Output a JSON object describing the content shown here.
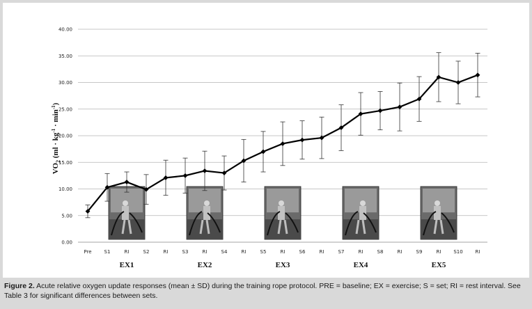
{
  "chart_data": {
    "type": "line",
    "title": "",
    "xlabel": "",
    "ylabel": {
      "main": "VO",
      "sub": "2",
      "rest_a": " (ml · kg",
      "sup_a": "-1",
      "rest_b": " · min",
      "sup_b": "-1",
      "rest_c": ")"
    },
    "ylim": [
      0,
      40
    ],
    "yticks": [
      "0.00",
      "5.00",
      "10.00",
      "15.00",
      "20.00",
      "25.00",
      "30.00",
      "35.00",
      "40.00"
    ],
    "grid": "horizontal",
    "categories": [
      "Pre",
      "S1",
      "RI",
      "S2",
      "RI",
      "S3",
      "RI",
      "S4",
      "RI",
      "S5",
      "RI",
      "S6",
      "RI",
      "S7",
      "RI",
      "S8",
      "RI",
      "S9",
      "RI",
      "S10",
      "RI"
    ],
    "series": [
      {
        "name": "",
        "values": [
          5.8,
          10.3,
          11.3,
          9.9,
          12.1,
          12.5,
          13.4,
          13.0,
          15.3,
          17.0,
          18.5,
          19.2,
          19.6,
          21.5,
          24.1,
          24.7,
          25.4,
          26.9,
          31.0,
          30.0,
          31.4
        ],
        "error": [
          1.2,
          2.6,
          1.9,
          2.8,
          3.3,
          3.3,
          3.7,
          3.2,
          4.0,
          3.8,
          4.1,
          3.6,
          3.9,
          4.3,
          4.0,
          3.6,
          4.5,
          4.2,
          4.6,
          4.0,
          4.1
        ]
      }
    ],
    "exercise_labels": [
      {
        "text": "EX1",
        "center_index": 2
      },
      {
        "text": "EX2",
        "center_index": 6
      },
      {
        "text": "EX3",
        "center_index": 10
      },
      {
        "text": "EX4",
        "center_index": 14
      },
      {
        "text": "EX5",
        "center_index": 18
      }
    ]
  },
  "caption": {
    "lead": "Figure 2.",
    "text": "Acute relative oxygen update responses (mean ± SD) during the training rope protocol. PRE = baseline; EX = exercise; S = set; RI = rest interval. See Table 3 for significant differences between sets."
  },
  "photos": [
    {
      "label": "EX1",
      "center_index": 2
    },
    {
      "label": "EX2",
      "center_index": 6
    },
    {
      "label": "EX3",
      "center_index": 10
    },
    {
      "label": "EX4",
      "center_index": 14
    },
    {
      "label": "EX5",
      "center_index": 18
    }
  ]
}
